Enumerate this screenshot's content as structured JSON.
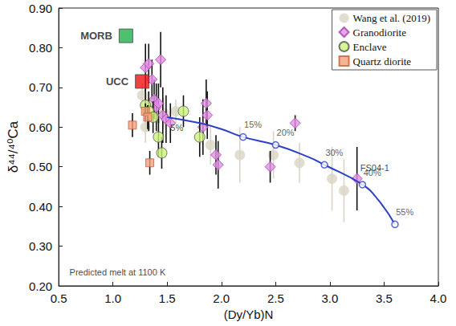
{
  "chart_data": {
    "type": "scatter",
    "x_label": "(Dy/Yb)N",
    "y_label": "δ⁴⁴/⁴⁰Ca",
    "xlim": [
      0.5,
      4.0
    ],
    "xticks": [
      {
        "value": 0.5,
        "label": "0.5"
      },
      {
        "value": 1.0,
        "label": "1.0"
      },
      {
        "value": 1.5,
        "label": "1.5"
      },
      {
        "value": 2.0,
        "label": "2.0"
      },
      {
        "value": 2.5,
        "label": "2.5"
      },
      {
        "value": 3.0,
        "label": "3.0"
      },
      {
        "value": 3.5,
        "label": "3.5"
      },
      {
        "value": 4.0,
        "label": "4.0"
      }
    ],
    "ylim": [
      0.2,
      0.9
    ],
    "yticks": [
      {
        "value": 0.2,
        "label": "0.20"
      },
      {
        "value": 0.3,
        "label": "0.30"
      },
      {
        "value": 0.4,
        "label": "0.40"
      },
      {
        "value": 0.5,
        "label": "0.50"
      },
      {
        "value": 0.6,
        "label": "0.60"
      },
      {
        "value": 0.7,
        "label": "0.70"
      },
      {
        "value": 0.8,
        "label": "0.80"
      },
      {
        "value": 0.9,
        "label": "0.90"
      }
    ],
    "grid": false,
    "legend": "top-right",
    "series": [
      {
        "name": "Wang et al. (2019)",
        "color": "#d9d4c6",
        "marker": "circle",
        "line_style": "light",
        "x": [
          1.27,
          1.33,
          1.3,
          1.47,
          1.58,
          1.9,
          2.17,
          2.48,
          2.72,
          3.02,
          3.13
        ],
        "values": [
          0.68,
          0.66,
          0.6,
          0.635,
          0.64,
          0.555,
          0.53,
          0.53,
          0.51,
          0.47,
          0.44
        ],
        "error": [
          0.03,
          0.03,
          0.04,
          0.04,
          0.03,
          0.05,
          0.07,
          0.06,
          0.05,
          0.08,
          0.08
        ]
      },
      {
        "name": "Granodiorite",
        "color": "#e58ee8",
        "marker": "diamond",
        "line_style": "solid",
        "x": [
          1.3,
          1.33,
          1.36,
          1.38,
          1.4,
          1.42,
          1.44,
          1.46,
          1.49,
          1.53,
          1.83,
          1.86,
          1.87,
          1.95,
          1.97,
          2.45,
          2.68,
          3.25
        ],
        "values": [
          0.75,
          0.76,
          0.72,
          0.67,
          0.65,
          0.66,
          0.77,
          0.63,
          0.62,
          0.61,
          0.6,
          0.66,
          0.63,
          0.53,
          0.505,
          0.5,
          0.61,
          0.47
        ],
        "error": [
          0.06,
          0.05,
          0.05,
          0.05,
          0.06,
          0.05,
          0.07,
          0.07,
          0.06,
          0.05,
          0.07,
          0.06,
          0.06,
          0.05,
          0.06,
          0.04,
          0.02,
          0.08
        ]
      },
      {
        "name": "Enclave",
        "color": "#ccf27a",
        "marker": "circle",
        "line_style": "solid",
        "x": [
          1.3,
          1.33,
          1.37,
          1.42,
          1.45,
          1.65,
          1.8
        ],
        "values": [
          0.655,
          0.64,
          0.625,
          0.575,
          0.535,
          0.64,
          0.575
        ],
        "error": [
          0.04,
          0.05,
          0.04,
          0.05,
          0.04,
          0.04,
          0.05
        ]
      },
      {
        "name": "Quartz diorite",
        "color": "#f5a07a",
        "marker": "square",
        "line_style": "solid",
        "x": [
          1.18,
          1.3,
          1.32,
          1.34
        ],
        "values": [
          0.605,
          0.64,
          0.625,
          0.51
        ],
        "error": [
          0.03,
          0.02,
          0.03,
          0.03
        ]
      }
    ],
    "model_curve": {
      "color": "#2d3fc7",
      "x": [
        1.5,
        1.8,
        2.0,
        2.2,
        2.5,
        2.8,
        2.95,
        3.3,
        3.45,
        3.6
      ],
      "values": [
        0.625,
        0.61,
        0.595,
        0.575,
        0.555,
        0.525,
        0.505,
        0.455,
        0.415,
        0.355
      ]
    },
    "model_points": {
      "color": "#2d3fc7",
      "x": [
        2.2,
        2.5,
        2.95,
        3.3,
        3.6
      ],
      "values": [
        0.575,
        0.555,
        0.505,
        0.455,
        0.355
      ],
      "labels": [
        "15%",
        "20%",
        "30%",
        "40%",
        "55%"
      ]
    },
    "reference_points": [
      {
        "name": "MORB",
        "color": "#22b24c",
        "x": 1.12,
        "y": 0.83
      },
      {
        "name": "UCC",
        "color": "#ee1111",
        "x": 1.27,
        "y": 0.715
      }
    ],
    "annotations": [
      {
        "text": "5%",
        "x": 1.53,
        "y": 0.598
      },
      {
        "text": "FS04-1",
        "x": 3.28,
        "y": 0.497
      },
      {
        "text": "Predicted melt at 1100 K",
        "x": 0.6,
        "y": 0.235
      }
    ]
  }
}
